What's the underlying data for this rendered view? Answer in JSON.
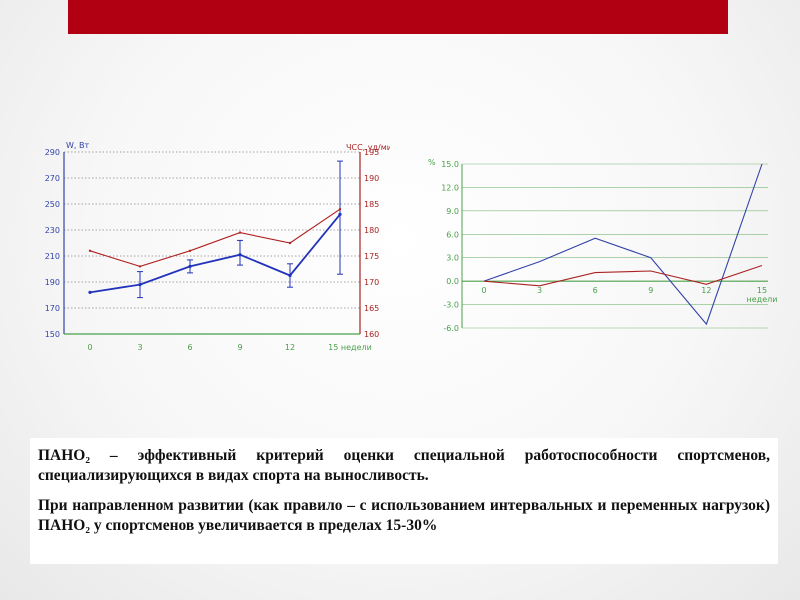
{
  "chart_data": [
    {
      "type": "line",
      "left_axis_label": "W, Вт",
      "right_axis_label": "ЧСС, уд/мин",
      "x_label": "недели",
      "categories": [
        "0",
        "3",
        "6",
        "9",
        "12",
        "15 недели"
      ],
      "x": [
        0,
        3,
        6,
        9,
        12,
        15
      ],
      "left_ticks": [
        "150",
        "170",
        "190",
        "210",
        "230",
        "250",
        "270",
        "290"
      ],
      "right_ticks": [
        "160",
        "165",
        "170",
        "175",
        "180",
        "185",
        "190",
        "195"
      ],
      "ylim_left": [
        150,
        290
      ],
      "ylim_right": [
        160,
        195
      ],
      "series": [
        {
          "axis": "left",
          "color": "#2233bb",
          "values": [
            182,
            188,
            202,
            211,
            195,
            242
          ],
          "err_low": [
            182,
            178,
            197,
            203,
            186,
            196
          ],
          "err_high": [
            182,
            198,
            207,
            222,
            204,
            283
          ]
        },
        {
          "axis": "right",
          "color": "#b02020",
          "values": [
            176,
            173,
            176,
            179.5,
            177.5,
            184
          ]
        }
      ],
      "grid": "horizontal dotted"
    },
    {
      "type": "line",
      "y_label": "%",
      "x_label": "недели",
      "categories": [
        "0",
        "3",
        "6",
        "9",
        "12",
        "15"
      ],
      "x": [
        0,
        3,
        6,
        9,
        12,
        15
      ],
      "y_ticks": [
        "-6.0",
        "-3.0",
        "0.0",
        "3.0",
        "6.0",
        "9.0",
        "12.0",
        "15.0"
      ],
      "ylim": [
        -6,
        15
      ],
      "series": [
        {
          "color": "#3344aa",
          "values": [
            0,
            2.5,
            5.5,
            3.0,
            -5.5,
            15.0
          ]
        },
        {
          "color": "#aa2222",
          "values": [
            0,
            -0.6,
            1.1,
            1.3,
            -0.4,
            2.0
          ]
        }
      ],
      "grid": "horizontal"
    }
  ],
  "text": {
    "p1": "ПАНО₂ – эффективный критерий оценки специальной работоспособности спортсменов, специализирующихся в видах спорта на выносливость.",
    "p2": "При направленном развитии (как правило – с использованием интервальных и переменных нагрузок) ПАНО₂ у спортсменов увеличивается в пределах 15-30%"
  }
}
